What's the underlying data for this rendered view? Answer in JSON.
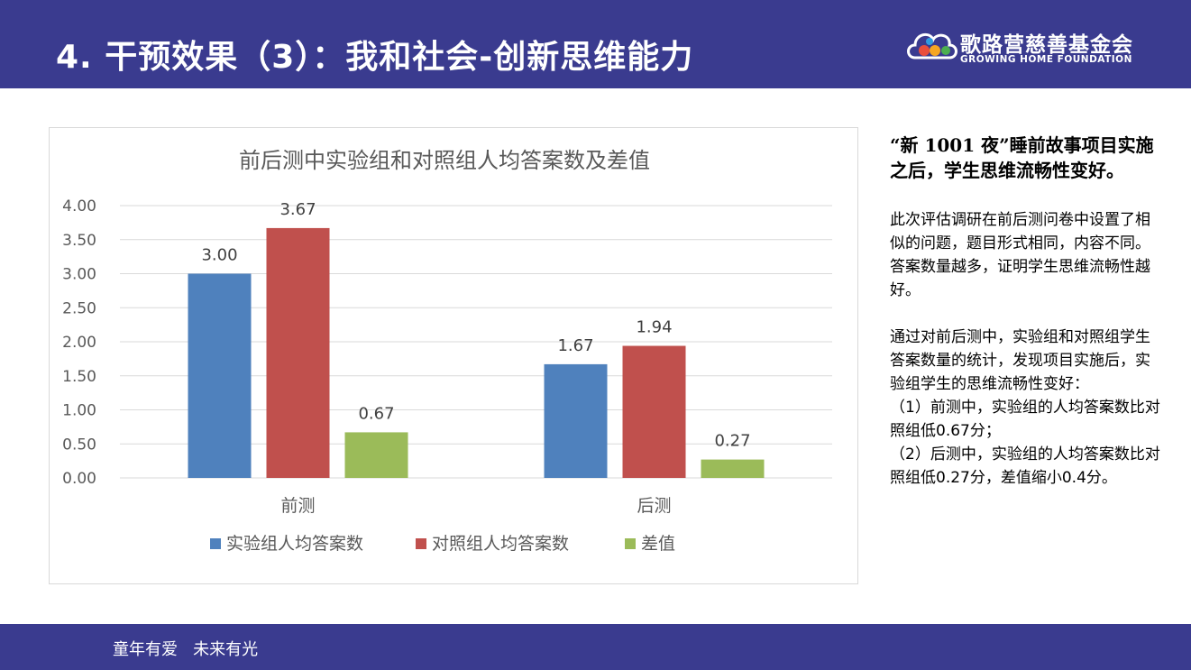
{
  "header": {
    "title": "4. 干预效果（3）：我和社会-创新思维能力",
    "logo": {
      "name_cn": "歌路营慈善基金会",
      "name_en": "GROWING HOME FOUNDATION"
    }
  },
  "chart_data": {
    "type": "bar",
    "title": "前后测中实验组和对照组人均答案数及差值",
    "categories": [
      "前测",
      "后测"
    ],
    "series": [
      {
        "name": "实验组人均答案数",
        "color": "#4f81bd",
        "values": [
          3.0,
          1.67
        ],
        "labels": [
          "3.00",
          "1.67"
        ]
      },
      {
        "name": "对照组人均答案数",
        "color": "#c0504d",
        "values": [
          3.67,
          1.94
        ],
        "labels": [
          "3.67",
          "1.94"
        ]
      },
      {
        "name": "差值",
        "color": "#9bbb59",
        "values": [
          0.67,
          0.27
        ],
        "labels": [
          "0.67",
          "0.27"
        ]
      }
    ],
    "ylim": [
      0,
      4
    ],
    "yticks": [
      "0.00",
      "0.50",
      "1.00",
      "1.50",
      "2.00",
      "2.50",
      "3.00",
      "3.50",
      "4.00"
    ],
    "xlabel": "",
    "ylabel": "",
    "grid": true,
    "legend": "bottom"
  },
  "side": {
    "heading": "“新 1001 夜”睡前故事项目实施之后，学生思维流畅性变好。",
    "para1": "此次评估调研在前后测问卷中设置了相似的问题，题目形式相同，内容不同。答案数量越多，证明学生思维流畅性越好。",
    "para2_intro": "通过对前后测中，实验组和对照组学生答案数量的统计，发现项目实施后，实验组学生的思维流畅性变好：",
    "point1": "（1）前测中，实验组的人均答案数比对照组低0.67分；",
    "point2": "（2）后测中，实验组的人均答案数比对照组低0.27分，差值缩小0.4分。"
  },
  "footer": {
    "slogan": "童年有爱   未来有光"
  }
}
